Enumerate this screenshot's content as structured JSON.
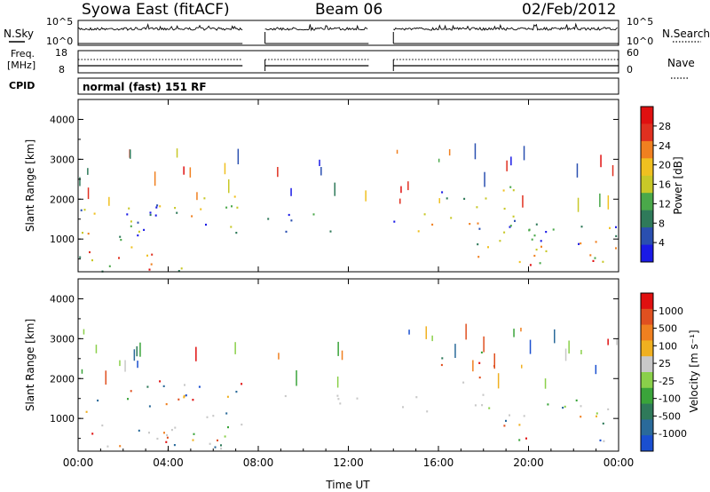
{
  "header": {
    "station": "Syowa East (fitACF)",
    "beam": "Beam 06",
    "date": "02/Feb/2012"
  },
  "aux_panels": {
    "nsky_label": "N.Sky",
    "nsearch_label": "N.Search",
    "freq_label_line1": "Freq.",
    "freq_label_line2": "[MHz]",
    "nave_label": "Nave",
    "cpid_label": "CPID",
    "cpid_value": "normal (fast) 151 RF",
    "noise_ticks": [
      "10^5",
      "10^0"
    ],
    "freq_ticks": [
      "18",
      "8"
    ],
    "nave_ticks": [
      "60",
      "0"
    ]
  },
  "colors": {
    "power_scale": [
      "#1a1ae6",
      "#2a4fb0",
      "#2f7a5a",
      "#4aa84a",
      "#c8c828",
      "#f0c020",
      "#f08020",
      "#e03020",
      "#e01010"
    ],
    "velocity_scale": [
      "#1a4fd0",
      "#2a6a9a",
      "#2f7a5a",
      "#3aa43a",
      "#8ad04a",
      "#c8c8c8",
      "#f0b020",
      "#f08020",
      "#e05020",
      "#e01010"
    ],
    "ground_scatter": "#b8b8b8"
  },
  "chart_data": [
    {
      "type": "heatmap",
      "panel": "power",
      "xlabel": "Time UT",
      "ylabel": "Slant Range [km]",
      "x_ticks": [
        "00:00",
        "04:00",
        "08:00",
        "12:00",
        "16:00",
        "20:00",
        "00:00"
      ],
      "y_ticks": [
        "1000",
        "2000",
        "3000",
        "4000"
      ],
      "xlim": [
        0,
        24
      ],
      "ylim": [
        180,
        4500
      ],
      "colorbar_label": "Power [dB]",
      "colorbar_ticks": [
        "4",
        "8",
        "12",
        "16",
        "20",
        "24",
        "28"
      ],
      "data_gaps_hours": [
        [
          7.3,
          8.3
        ],
        [
          12.9,
          14.0
        ]
      ],
      "scatter_bands": [
        {
          "t0": 0.0,
          "t1": 5.2,
          "r0": 200,
          "r1": 1900,
          "level": 0.75
        },
        {
          "t0": 5.2,
          "t1": 7.3,
          "r0": 900,
          "r1": 2200,
          "level": 0.6
        },
        {
          "t0": 8.4,
          "t1": 12.8,
          "r0": 1200,
          "r1": 1650,
          "level": 0.55
        },
        {
          "t0": 14.0,
          "t1": 18.0,
          "r0": 1200,
          "r1": 1700,
          "level": 0.6
        },
        {
          "t0": 16.0,
          "t1": 19.5,
          "r0": 1400,
          "r1": 2600,
          "level": 0.45
        },
        {
          "t0": 17.5,
          "t1": 24.0,
          "r0": 300,
          "r1": 1500,
          "level": 0.8
        }
      ]
    },
    {
      "type": "heatmap",
      "panel": "velocity",
      "xlabel": "Time UT",
      "ylabel": "Slant Range [km]",
      "x_ticks": [
        "00:00",
        "04:00",
        "08:00",
        "12:00",
        "16:00",
        "20:00",
        "00:00"
      ],
      "y_ticks": [
        "1000",
        "2000",
        "3000",
        "4000"
      ],
      "xlim": [
        0,
        24
      ],
      "ylim": [
        180,
        4500
      ],
      "colorbar_label": "Velocity [m s⁻¹]",
      "colorbar_ticks": [
        "1000",
        "500",
        "100",
        "25",
        "-25",
        "-100",
        "-500",
        "-1000"
      ],
      "data_gaps_hours": [
        [
          7.3,
          8.3
        ],
        [
          12.9,
          14.0
        ]
      ],
      "scatter_bands": [
        {
          "t0": 0.0,
          "t1": 3.0,
          "r0": 200,
          "r1": 1800,
          "level": 0.35
        },
        {
          "t0": 3.0,
          "t1": 7.3,
          "r0": 200,
          "r1": 2200,
          "level": 0.8
        },
        {
          "t0": 8.4,
          "t1": 12.8,
          "r0": 1200,
          "r1": 1600,
          "level": 0.5
        },
        {
          "t0": 14.0,
          "t1": 18.0,
          "r0": 1200,
          "r1": 1700,
          "level": 0.5
        },
        {
          "t0": 16.0,
          "t1": 19.0,
          "r0": 1800,
          "r1": 3200,
          "level": 0.3
        },
        {
          "t0": 17.5,
          "t1": 24.0,
          "r0": 300,
          "r1": 1500,
          "level": 0.45
        }
      ]
    }
  ],
  "axes": {
    "x_label": "Time UT",
    "y_label": "Slant Range [km]"
  }
}
